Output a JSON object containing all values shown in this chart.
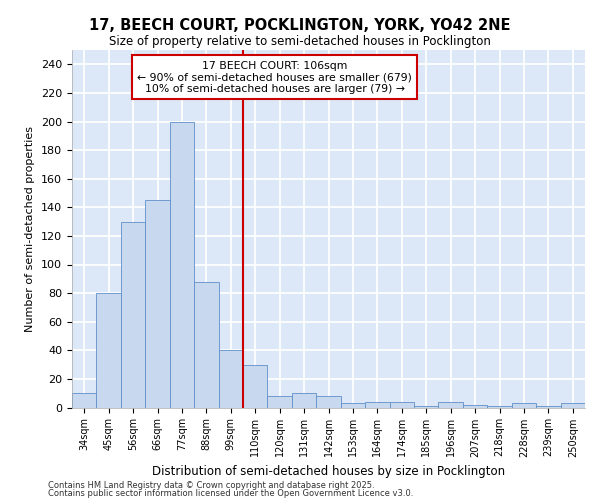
{
  "title1": "17, BEECH COURT, POCKLINGTON, YORK, YO42 2NE",
  "title2": "Size of property relative to semi-detached houses in Pocklington",
  "xlabel": "Distribution of semi-detached houses by size in Pocklington",
  "ylabel": "Number of semi-detached properties",
  "bin_labels": [
    "34sqm",
    "45sqm",
    "56sqm",
    "66sqm",
    "77sqm",
    "88sqm",
    "99sqm",
    "110sqm",
    "120sqm",
    "131sqm",
    "142sqm",
    "153sqm",
    "164sqm",
    "174sqm",
    "185sqm",
    "196sqm",
    "207sqm",
    "218sqm",
    "228sqm",
    "239sqm",
    "250sqm"
  ],
  "values": [
    10,
    80,
    130,
    145,
    200,
    88,
    40,
    30,
    8,
    10,
    8,
    3,
    4,
    4,
    1,
    4,
    2,
    1,
    3,
    1,
    3
  ],
  "bar_color": "#c8d8ee",
  "bar_edge_color": "#6090c8",
  "red_line_bin_index": 7,
  "property_label": "17 BEECH COURT: 106sqm",
  "smaller_text": "← 90% of semi-detached houses are smaller (679)",
  "larger_text": "10% of semi-detached houses are larger (79) →",
  "annotation_box_bg": "#ffffff",
  "annotation_box_edge": "#cc0000",
  "red_line_color": "#cc0000",
  "ylim_max": 250,
  "yticks": [
    0,
    20,
    40,
    60,
    80,
    100,
    120,
    140,
    160,
    180,
    200,
    220,
    240
  ],
  "footnote_line1": "Contains HM Land Registry data © Crown copyright and database right 2025.",
  "footnote_line2": "Contains public sector information licensed under the Open Government Licence v3.0.",
  "bg_color": "#dce8f8",
  "grid_color": "#ffffff",
  "fig_bg": "#ffffff"
}
